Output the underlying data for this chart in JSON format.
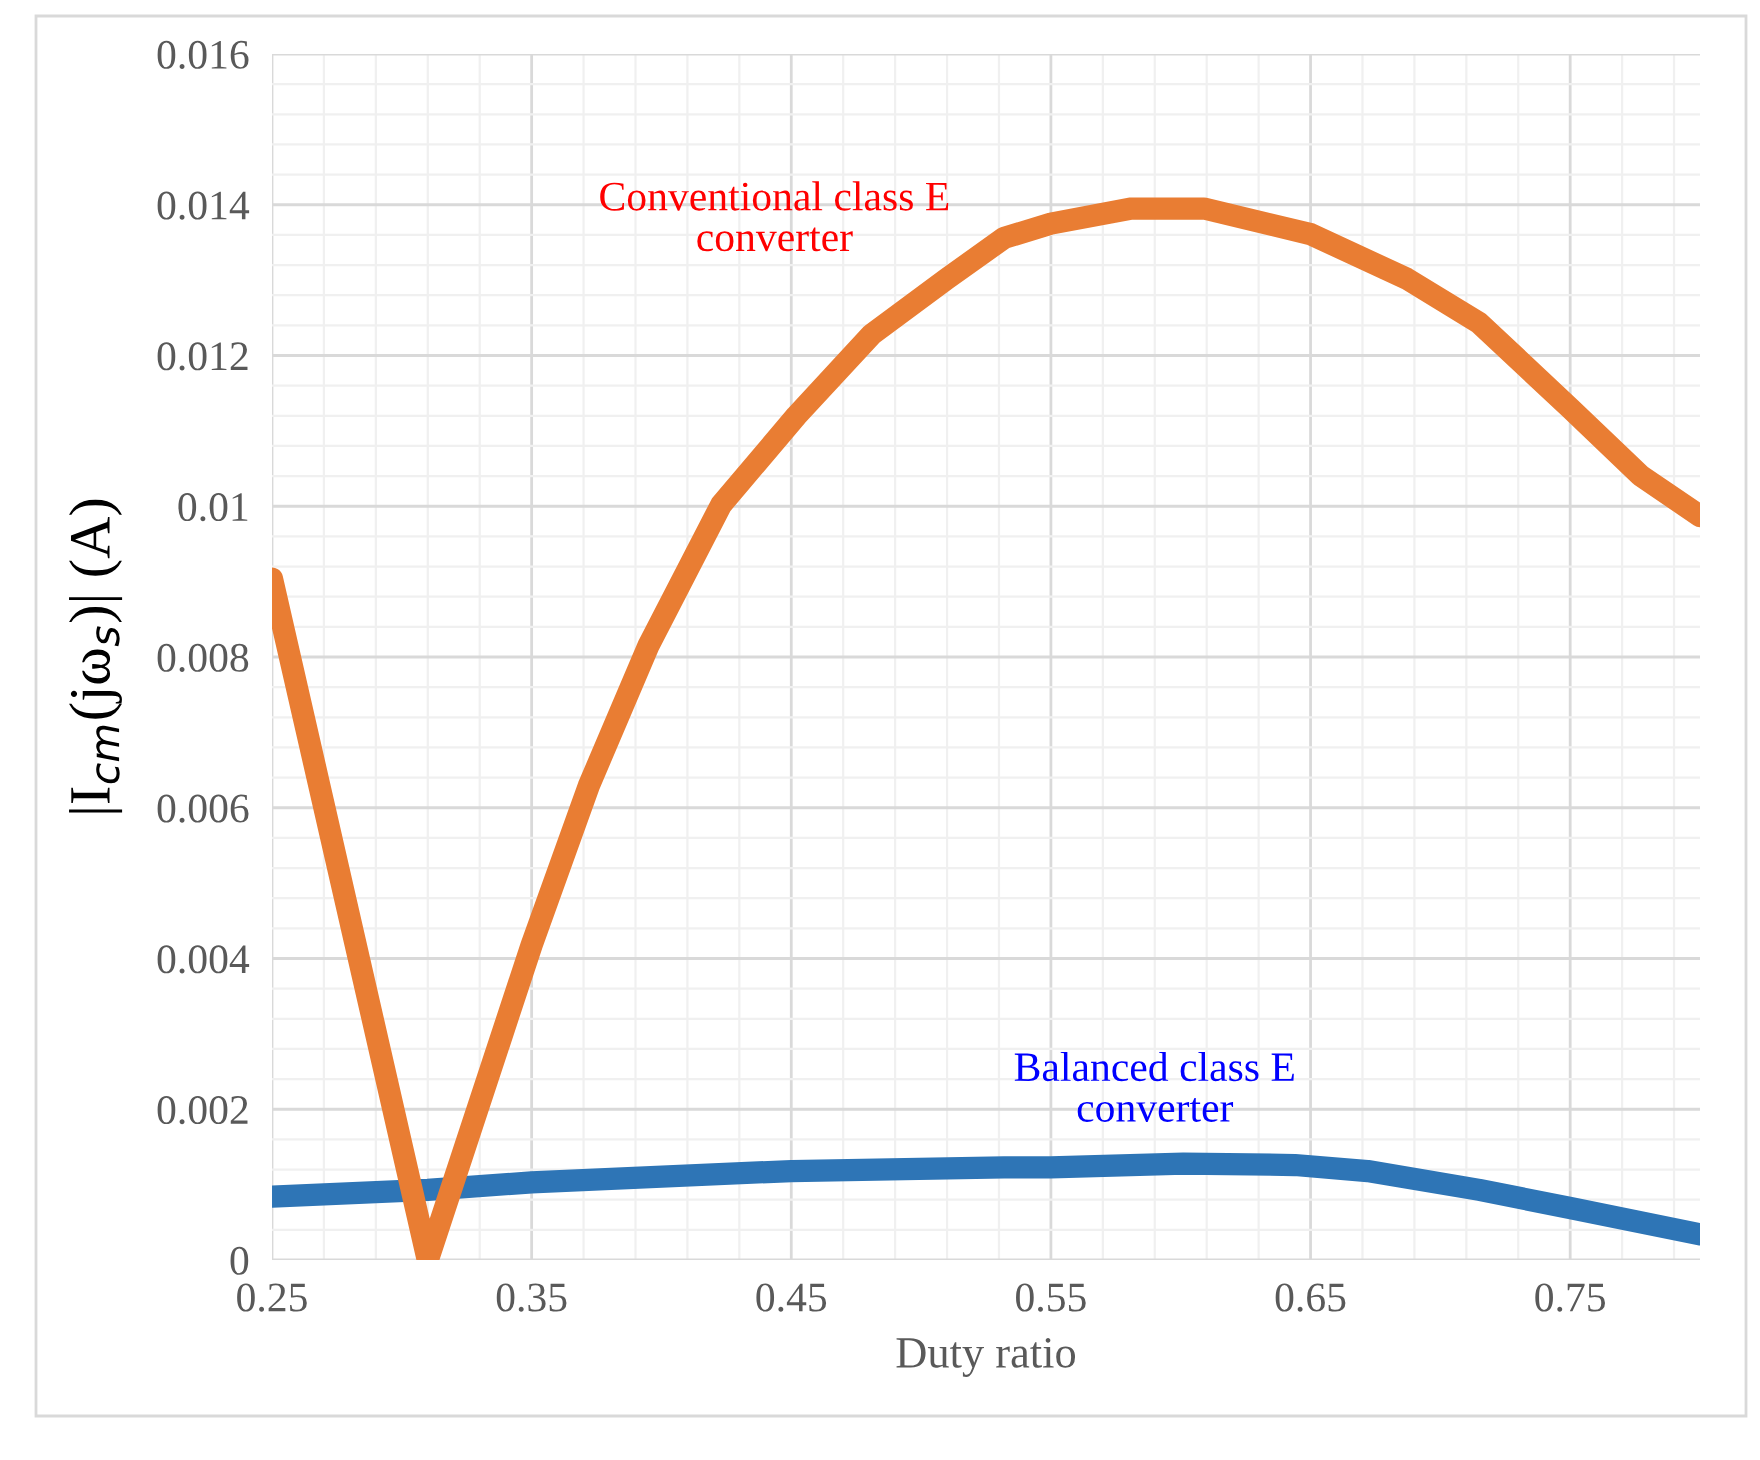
{
  "chart_data": {
    "type": "line",
    "xlabel": "Duty ratio",
    "ylabel": "|I$_{cm}$(jω$_{s}$)| (A)",
    "xlim": [
      0.25,
      0.8
    ],
    "xticks": [
      0.25,
      0.35,
      0.45,
      0.55,
      0.65,
      0.75
    ],
    "ylim": [
      0,
      0.016
    ],
    "yticks": [
      0,
      0.002,
      0.004,
      0.006,
      0.008,
      0.01,
      0.012,
      0.014,
      0.016
    ],
    "grid": true,
    "legend": false,
    "line_style": "solid",
    "series": [
      {
        "name": "Conventional class E\nconverter",
        "color": "#e97d33",
        "x": [
          0.25,
          0.31,
          0.35,
          0.372,
          0.395,
          0.423,
          0.452,
          0.481,
          0.51,
          0.532,
          0.55,
          0.581,
          0.609,
          0.65,
          0.687,
          0.715,
          0.75,
          0.777,
          0.8
        ],
        "values": [
          0.00904,
          0.0,
          0.00418,
          0.00629,
          0.00815,
          0.01002,
          0.0112,
          0.01228,
          0.01302,
          0.01356,
          0.01375,
          0.01395,
          0.01395,
          0.01361,
          0.01302,
          0.01243,
          0.0113,
          0.01041,
          0.00987
        ]
      },
      {
        "name": "Balanced class E\nconverter",
        "color": "#2e75b6",
        "x": [
          0.25,
          0.31,
          0.35,
          0.45,
          0.532,
          0.55,
          0.601,
          0.644,
          0.672,
          0.715,
          0.75,
          0.8
        ],
        "values": [
          0.00084,
          0.00093,
          0.00103,
          0.00118,
          0.00123,
          0.00123,
          0.00128,
          0.00126,
          0.00118,
          0.00093,
          0.00069,
          0.00034
        ]
      }
    ]
  }
}
